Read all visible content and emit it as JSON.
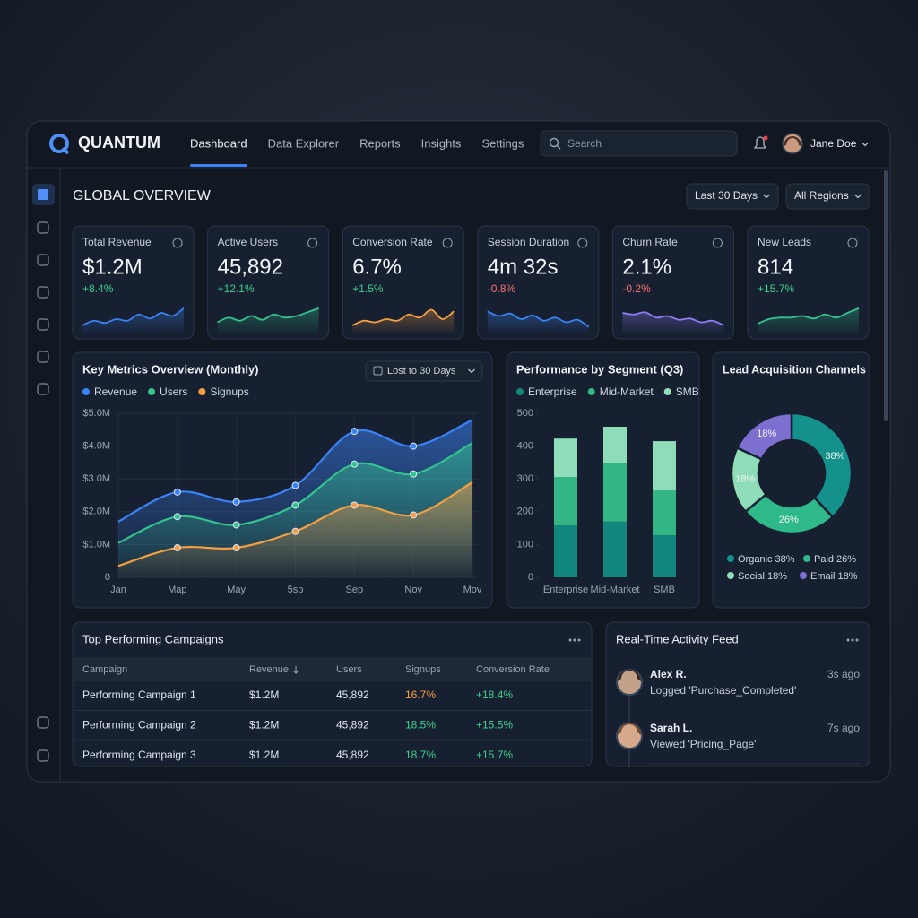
{
  "nav": {
    "brand": "QUANTUM",
    "tabs": [
      "Dashboard",
      "Data Explorer",
      "Reports",
      "Insights",
      "Settings"
    ],
    "search": "Search",
    "user": "Jane Doe"
  },
  "header": {
    "title": "GLOBAL OVERVIEW",
    "filters": [
      "Last 30 Days",
      "All Regions"
    ]
  },
  "kpis": [
    {
      "title": "Total Revenue",
      "value": "$1.2M",
      "change": "+8.4%",
      "change_color": "#3ecf8e",
      "color": "#3b82f6",
      "sparkline": [
        20,
        35,
        28,
        40,
        35,
        55,
        42,
        60,
        50,
        75
      ]
    },
    {
      "title": "Active Users",
      "value": "45,892",
      "change": "+12.1%",
      "change_color": "#3ecf8e",
      "color": "#34c38f",
      "sparkline": [
        30,
        45,
        35,
        50,
        38,
        55,
        45,
        50,
        62,
        75
      ]
    },
    {
      "title": "Conversion Rate",
      "value": "6.7%",
      "change": "+1.5%",
      "change_color": "#3ecf8e",
      "color": "#f59e42",
      "sparkline": [
        20,
        35,
        30,
        40,
        35,
        55,
        45,
        70,
        40,
        65
      ]
    },
    {
      "title": "Session Duration",
      "value": "4m 32s",
      "change": "-0.8%",
      "change_color": "#f87171",
      "color": "#3b82f6",
      "sparkline": [
        65,
        50,
        58,
        40,
        52,
        35,
        45,
        30,
        38,
        15
      ]
    },
    {
      "title": "Churn Rate",
      "value": "2.1%",
      "change": "-0.2%",
      "change_color": "#f87171",
      "color": "#8b7cf0",
      "sparkline": [
        60,
        55,
        62,
        45,
        50,
        38,
        42,
        30,
        35,
        20
      ]
    },
    {
      "title": "New Leads",
      "value": "814",
      "change": "+15.7%",
      "change_color": "#3ecf8e",
      "color": "#34c38f",
      "sparkline": [
        25,
        40,
        45,
        45,
        50,
        42,
        55,
        45,
        60,
        75
      ]
    }
  ],
  "chart_data": [
    {
      "type": "area",
      "title": "Key Metrics Overview (Monthly)",
      "filter": "Lost to 30 Days",
      "categories": [
        "Jan",
        "Map",
        "May",
        "5sp",
        "Sep",
        "Nov",
        "Mov"
      ],
      "series": [
        {
          "name": "Revenue",
          "color": "#3b82f6",
          "values": [
            1.7,
            2.6,
            2.3,
            2.8,
            4.45,
            4.0,
            4.8
          ]
        },
        {
          "name": "Users",
          "color": "#34c38f",
          "values": [
            1.05,
            1.85,
            1.6,
            2.2,
            3.45,
            3.15,
            4.1
          ]
        },
        {
          "name": "Signups",
          "color": "#f59e42",
          "values": [
            0.35,
            0.9,
            0.9,
            1.4,
            2.2,
            1.9,
            2.9
          ]
        }
      ],
      "ylim": [
        0,
        5
      ],
      "yticks": [
        0,
        {
          "value": 1,
          "label": "$1.0M"
        },
        {
          "value": 2,
          "label": "$2.0M"
        },
        {
          "value": 3,
          "label": "$3.0M"
        },
        {
          "value": 4,
          "label": "$4.0M"
        },
        {
          "value": 5,
          "label": "$5.0M"
        }
      ],
      "grid": true
    },
    {
      "type": "stacked_bar",
      "title": "Performance by Segment (Q3)",
      "categories": [
        "Enterprise",
        "Mid-Market",
        "SMB"
      ],
      "series": [
        {
          "name": "Enterprise",
          "color": "#12877d",
          "values": [
            158,
            170,
            128
          ]
        },
        {
          "name": "Mid-Market",
          "color": "#33b585",
          "values": [
            148,
            177,
            137
          ]
        },
        {
          "name": "SMB",
          "color": "#8fdcb9",
          "values": [
            117,
            112,
            150
          ]
        }
      ],
      "ylim": [
        0,
        500
      ],
      "yticks": [
        0,
        100,
        200,
        300,
        400,
        500
      ]
    },
    {
      "type": "donut",
      "title": "Lead Acquisition Channels",
      "categories": [
        "Organic",
        "Paid",
        "Social",
        "Email"
      ],
      "values": [
        38,
        26,
        18,
        18
      ],
      "value_labels": [
        "38%",
        "26%",
        "18%",
        "18%"
      ],
      "colors": [
        "#14918a",
        "#2fb88a",
        "#8fdcb9",
        "#7c6fd0"
      ]
    }
  ],
  "campaigns": {
    "title": "Top Performing Campaigns",
    "columns": [
      "Campaign",
      "Revenue",
      "Users",
      "Signups",
      "Conversion Rate"
    ],
    "rows": [
      [
        "Performing Campaign 1",
        "$1.2M",
        "45,892",
        "16.7%",
        "+18.4%"
      ],
      [
        "Performing Campaign 2",
        "$1.2M",
        "45,892",
        "18.5%",
        "+15.5%"
      ],
      [
        "Performing Campaign 3",
        "$1.2M",
        "45,892",
        "18.7%",
        "+15.7%"
      ]
    ]
  },
  "activity": {
    "title": "Real-Time Activity Feed",
    "items": [
      {
        "name": "Alex R.",
        "time": "3s ago",
        "text": "Logged 'Purchase_Completed'"
      },
      {
        "name": "Sarah L.",
        "time": "7s ago",
        "text": "Viewed 'Pricing_Page'"
      }
    ]
  }
}
